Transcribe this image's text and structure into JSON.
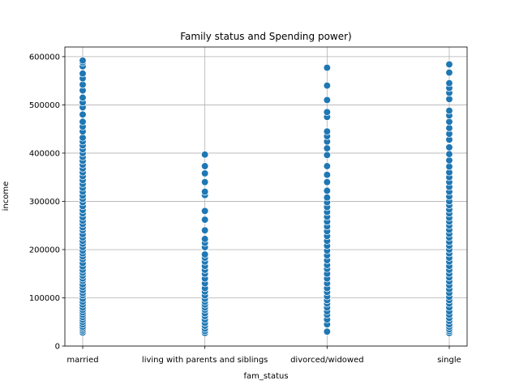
{
  "chart_data": {
    "type": "scatter",
    "title": "Family status and Spending power)",
    "xlabel": "fam_status",
    "ylabel": "income",
    "categories": [
      "married",
      "living with parents and siblings",
      "divorced/widowed",
      "single"
    ],
    "ylim": [
      0,
      620000
    ],
    "yticks": [
      0,
      100000,
      200000,
      300000,
      400000,
      500000,
      600000
    ],
    "ytick_labels": [
      "0",
      "100000",
      "200000",
      "300000",
      "400000",
      "500000",
      "600000"
    ],
    "grid": true,
    "marker_color": "#1f77b4",
    "marker_edge_color": "#ffffff",
    "series": [
      {
        "category": "married",
        "values": [
          28000,
          32000,
          36000,
          40000,
          45000,
          50000,
          55000,
          60000,
          65000,
          70000,
          75000,
          80000,
          86000,
          92000,
          98000,
          105000,
          110000,
          116000,
          122000,
          128000,
          135000,
          140000,
          146000,
          152000,
          158000,
          165000,
          172000,
          180000,
          186000,
          192000,
          198000,
          205000,
          212000,
          218000,
          225000,
          232000,
          240000,
          246000,
          253000,
          260000,
          267000,
          275000,
          282000,
          290000,
          298000,
          305000,
          312000,
          320000,
          328000,
          336000,
          344000,
          352000,
          360000,
          368000,
          376000,
          384000,
          392000,
          400000,
          408000,
          416000,
          424000,
          432000,
          445000,
          455000,
          465000,
          480000,
          495000,
          505000,
          515000,
          530000,
          542000,
          555000,
          565000,
          580000,
          588000,
          592000
        ]
      },
      {
        "category": "living with parents and siblings",
        "values": [
          27000,
          31000,
          36000,
          42000,
          48000,
          55000,
          62000,
          68000,
          75000,
          80000,
          86000,
          92000,
          98000,
          105000,
          113000,
          120000,
          130000,
          140000,
          150000,
          158000,
          166000,
          175000,
          183000,
          190000,
          205000,
          214000,
          222000,
          240000,
          262000,
          280000,
          313000,
          320000,
          340000,
          358000,
          373000,
          397000
        ]
      },
      {
        "category": "divorced/widowed",
        "values": [
          30000,
          45000,
          55000,
          65000,
          72000,
          80000,
          88000,
          95000,
          103000,
          112000,
          120000,
          130000,
          140000,
          150000,
          160000,
          168000,
          178000,
          188000,
          198000,
          208000,
          218000,
          228000,
          238000,
          248000,
          258000,
          268000,
          278000,
          288000,
          298000,
          308000,
          322000,
          340000,
          355000,
          373000,
          396000,
          410000,
          424000,
          435000,
          445000,
          475000,
          485000,
          510000,
          540000,
          577000
        ]
      },
      {
        "category": "single",
        "values": [
          27000,
          31000,
          35000,
          40000,
          45000,
          52000,
          58000,
          65000,
          72000,
          80000,
          88000,
          95000,
          102000,
          110000,
          118000,
          126000,
          134000,
          142000,
          150000,
          158000,
          166000,
          175000,
          183000,
          192000,
          200000,
          208000,
          216000,
          225000,
          233000,
          241000,
          250000,
          258000,
          266000,
          275000,
          283000,
          292000,
          300000,
          310000,
          320000,
          330000,
          340000,
          350000,
          360000,
          372000,
          385000,
          398000,
          412000,
          428000,
          440000,
          452000,
          465000,
          478000,
          488000,
          512000,
          525000,
          535000,
          545000,
          567000,
          584000
        ]
      }
    ]
  }
}
